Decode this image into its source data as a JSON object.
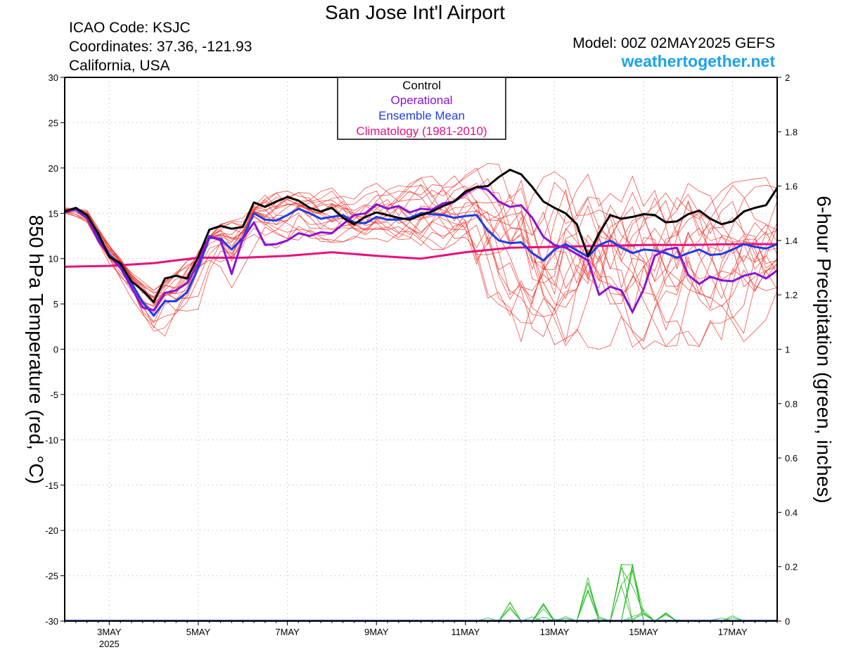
{
  "header": {
    "title": "San Jose Int'l Airport",
    "icao": "ICAO Code: KSJC",
    "coords": "Coordinates: 37.36, -121.93",
    "region": "California, USA",
    "model": "Model: 00Z 02MAY2025 GEFS",
    "site": "weathertogether.net"
  },
  "colors": {
    "control": "#000000",
    "operational": "#8a12d6",
    "mean": "#1f3bea",
    "climatology": "#e8107f",
    "members": "#f0322a",
    "precip": "#22bb22"
  },
  "chart_data": {
    "type": "line",
    "ylabel": "850 hPa Temperature (red, °C)",
    "y2label": "6-hour Precipitation (green, inches)",
    "ylim": [
      -30,
      30
    ],
    "y2lim": [
      0,
      2
    ],
    "yticks": [
      30,
      25,
      20,
      15,
      10,
      5,
      0,
      -5,
      -10,
      -15,
      -20,
      -25,
      -30
    ],
    "y2ticks": [
      "2",
      "1.8",
      "1.6",
      "1.4",
      "1.2",
      "1",
      "0.8",
      "0.6",
      "0.4",
      "0.2",
      "0"
    ],
    "xlim_days": [
      2.0,
      18.0
    ],
    "xticks": [
      {
        "day": 3,
        "label": "3MAY",
        "sub": "2025"
      },
      {
        "day": 5,
        "label": "5MAY",
        "sub": ""
      },
      {
        "day": 7,
        "label": "7MAY",
        "sub": ""
      },
      {
        "day": 9,
        "label": "9MAY",
        "sub": ""
      },
      {
        "day": 11,
        "label": "11MAY",
        "sub": ""
      },
      {
        "day": 13,
        "label": "13MAY",
        "sub": ""
      },
      {
        "day": 15,
        "label": "15MAY",
        "sub": ""
      },
      {
        "day": 17,
        "label": "17MAY",
        "sub": ""
      }
    ],
    "grid": true,
    "legend": {
      "position": "top-center",
      "entries": [
        {
          "label": "Control",
          "color": "#000000"
        },
        {
          "label": "Operational",
          "color": "#8a12d6"
        },
        {
          "label": "Ensemble Mean",
          "color": "#1f3bea"
        },
        {
          "label": "Climatology (1981-2010)",
          "color": "#e8107f"
        }
      ]
    },
    "series": [
      {
        "name": "Control",
        "color": "#000000",
        "points": [
          [
            2.0,
            15.2
          ],
          [
            2.25,
            15.6
          ],
          [
            2.5,
            14.8
          ],
          [
            2.75,
            12.8
          ],
          [
            3.0,
            10.2
          ],
          [
            3.25,
            9.5
          ],
          [
            3.5,
            7.5
          ],
          [
            3.75,
            6.5
          ],
          [
            4.0,
            5.2
          ],
          [
            4.25,
            7.8
          ],
          [
            4.5,
            8.1
          ],
          [
            4.75,
            7.8
          ],
          [
            5.0,
            10.2
          ],
          [
            5.25,
            13.2
          ],
          [
            5.5,
            13.6
          ],
          [
            5.75,
            13.3
          ],
          [
            6.0,
            13.5
          ],
          [
            6.25,
            16.2
          ],
          [
            6.5,
            15.7
          ],
          [
            6.75,
            16.3
          ],
          [
            7.0,
            16.8
          ],
          [
            7.25,
            16.4
          ],
          [
            7.5,
            15.6
          ],
          [
            7.75,
            15.2
          ],
          [
            8.0,
            15.6
          ],
          [
            8.25,
            14.5
          ],
          [
            8.5,
            13.8
          ],
          [
            8.75,
            14.6
          ],
          [
            9.0,
            15.1
          ],
          [
            9.25,
            14.8
          ],
          [
            9.5,
            14.5
          ],
          [
            9.75,
            14.3
          ],
          [
            10.0,
            14.8
          ],
          [
            10.25,
            15.2
          ],
          [
            10.5,
            15.8
          ],
          [
            10.75,
            16.3
          ],
          [
            11.0,
            17.4
          ],
          [
            11.25,
            17.9
          ],
          [
            11.5,
            18.0
          ],
          [
            11.75,
            19.0
          ],
          [
            12.0,
            19.8
          ],
          [
            12.25,
            19.3
          ],
          [
            12.5,
            17.9
          ],
          [
            12.75,
            16.3
          ],
          [
            13.0,
            15.6
          ],
          [
            13.25,
            15.0
          ],
          [
            13.5,
            13.8
          ],
          [
            13.75,
            10.3
          ],
          [
            14.0,
            12.8
          ],
          [
            14.25,
            14.8
          ],
          [
            14.5,
            14.4
          ],
          [
            14.75,
            14.6
          ],
          [
            15.0,
            14.9
          ],
          [
            15.25,
            14.8
          ],
          [
            15.5,
            14.0
          ],
          [
            15.75,
            14.1
          ],
          [
            16.0,
            14.9
          ],
          [
            16.25,
            15.3
          ],
          [
            16.5,
            14.4
          ],
          [
            16.75,
            13.8
          ],
          [
            17.0,
            14.1
          ],
          [
            17.25,
            15.2
          ],
          [
            17.5,
            15.6
          ],
          [
            17.75,
            15.9
          ],
          [
            18.0,
            17.8
          ]
        ]
      },
      {
        "name": "Operational",
        "color": "#8a12d6",
        "points": [
          [
            2.0,
            15.1
          ],
          [
            2.25,
            15.5
          ],
          [
            2.5,
            14.6
          ],
          [
            2.75,
            12.0
          ],
          [
            3.0,
            10.3
          ],
          [
            3.25,
            9.0
          ],
          [
            3.5,
            6.8
          ],
          [
            3.75,
            4.6
          ],
          [
            4.0,
            4.3
          ],
          [
            4.25,
            6.2
          ],
          [
            4.5,
            6.5
          ],
          [
            4.75,
            7.3
          ],
          [
            5.0,
            9.5
          ],
          [
            5.25,
            12.5
          ],
          [
            5.5,
            12.0
          ],
          [
            5.75,
            8.3
          ],
          [
            6.0,
            12.2
          ],
          [
            6.25,
            14.0
          ],
          [
            6.5,
            11.5
          ],
          [
            6.75,
            11.6
          ],
          [
            7.0,
            12.0
          ],
          [
            7.25,
            12.8
          ],
          [
            7.5,
            12.5
          ],
          [
            7.75,
            12.9
          ],
          [
            8.0,
            12.8
          ],
          [
            8.25,
            13.8
          ],
          [
            8.5,
            14.8
          ],
          [
            8.75,
            15.0
          ],
          [
            9.0,
            16.0
          ],
          [
            9.25,
            15.5
          ],
          [
            9.5,
            15.8
          ],
          [
            9.75,
            15.1
          ],
          [
            10.0,
            15.5
          ],
          [
            10.25,
            15.4
          ],
          [
            10.5,
            16.1
          ],
          [
            10.75,
            16.3
          ],
          [
            11.0,
            17.2
          ],
          [
            11.25,
            17.9
          ],
          [
            11.5,
            17.6
          ],
          [
            11.75,
            16.3
          ],
          [
            12.0,
            15.7
          ],
          [
            12.25,
            15.9
          ],
          [
            12.5,
            14.5
          ],
          [
            12.75,
            12.4
          ],
          [
            13.0,
            11.5
          ],
          [
            13.25,
            11.2
          ],
          [
            13.5,
            10.5
          ],
          [
            13.75,
            9.8
          ],
          [
            14.0,
            6.0
          ],
          [
            14.25,
            6.9
          ],
          [
            14.5,
            6.5
          ],
          [
            14.75,
            4.1
          ],
          [
            15.0,
            6.6
          ],
          [
            15.25,
            10.3
          ],
          [
            15.5,
            11.0
          ],
          [
            15.75,
            11.2
          ],
          [
            16.0,
            8.2
          ],
          [
            16.25,
            7.2
          ],
          [
            16.5,
            8.0
          ],
          [
            16.75,
            7.6
          ],
          [
            17.0,
            7.5
          ],
          [
            17.25,
            8.1
          ],
          [
            17.5,
            8.4
          ],
          [
            17.75,
            7.8
          ],
          [
            18.0,
            8.7
          ]
        ]
      },
      {
        "name": "Ensemble Mean",
        "color": "#1f3bea",
        "points": [
          [
            2.0,
            15.2
          ],
          [
            2.25,
            15.4
          ],
          [
            2.5,
            14.5
          ],
          [
            2.75,
            12.3
          ],
          [
            3.0,
            10.5
          ],
          [
            3.25,
            9.3
          ],
          [
            3.5,
            7.3
          ],
          [
            3.75,
            5.2
          ],
          [
            4.0,
            3.7
          ],
          [
            4.25,
            5.3
          ],
          [
            4.5,
            5.3
          ],
          [
            4.75,
            6.3
          ],
          [
            5.0,
            9.0
          ],
          [
            5.25,
            12.3
          ],
          [
            5.5,
            12.2
          ],
          [
            5.75,
            11.0
          ],
          [
            6.0,
            12.3
          ],
          [
            6.25,
            15.0
          ],
          [
            6.5,
            14.3
          ],
          [
            6.75,
            14.2
          ],
          [
            7.0,
            14.8
          ],
          [
            7.25,
            15.5
          ],
          [
            7.5,
            15.0
          ],
          [
            7.75,
            14.4
          ],
          [
            8.0,
            14.6
          ],
          [
            8.25,
            14.8
          ],
          [
            8.5,
            14.0
          ],
          [
            8.75,
            13.9
          ],
          [
            9.0,
            14.6
          ],
          [
            9.25,
            14.3
          ],
          [
            9.5,
            14.3
          ],
          [
            9.75,
            14.5
          ],
          [
            10.0,
            15.0
          ],
          [
            10.25,
            14.9
          ],
          [
            10.5,
            14.8
          ],
          [
            10.75,
            14.5
          ],
          [
            11.0,
            14.7
          ],
          [
            11.25,
            14.8
          ],
          [
            11.5,
            13.1
          ],
          [
            11.75,
            12.0
          ],
          [
            12.0,
            11.7
          ],
          [
            12.25,
            11.8
          ],
          [
            12.5,
            10.6
          ],
          [
            12.75,
            9.8
          ],
          [
            13.0,
            11.0
          ],
          [
            13.25,
            11.6
          ],
          [
            13.5,
            10.9
          ],
          [
            13.75,
            10.2
          ],
          [
            14.0,
            11.5
          ],
          [
            14.25,
            12.0
          ],
          [
            14.5,
            11.2
          ],
          [
            14.75,
            10.6
          ],
          [
            15.0,
            11.0
          ],
          [
            15.25,
            10.9
          ],
          [
            15.5,
            10.6
          ],
          [
            15.75,
            10.1
          ],
          [
            16.0,
            10.6
          ],
          [
            16.25,
            11.0
          ],
          [
            16.5,
            10.4
          ],
          [
            16.75,
            10.5
          ],
          [
            17.0,
            11.0
          ],
          [
            17.25,
            11.6
          ],
          [
            17.5,
            11.3
          ],
          [
            17.75,
            11.1
          ],
          [
            18.0,
            11.6
          ]
        ]
      },
      {
        "name": "Climatology (1981-2010)",
        "color": "#e8107f",
        "points": [
          [
            2.0,
            9.1
          ],
          [
            3.0,
            9.2
          ],
          [
            4.0,
            9.5
          ],
          [
            5.0,
            10.1
          ],
          [
            6.0,
            10.1
          ],
          [
            7.0,
            10.3
          ],
          [
            8.0,
            10.7
          ],
          [
            9.0,
            10.3
          ],
          [
            10.0,
            10.0
          ],
          [
            11.0,
            10.7
          ],
          [
            12.0,
            11.2
          ],
          [
            13.0,
            11.3
          ],
          [
            14.0,
            11.4
          ],
          [
            15.0,
            11.5
          ],
          [
            16.0,
            11.5
          ],
          [
            17.0,
            11.6
          ],
          [
            18.0,
            11.6
          ]
        ]
      }
    ],
    "members_envelope": {
      "upper": [
        [
          2.0,
          15.6
        ],
        [
          2.5,
          15.4
        ],
        [
          3.0,
          11.5
        ],
        [
          3.5,
          8.5
        ],
        [
          4.0,
          6.5
        ],
        [
          4.5,
          8.5
        ],
        [
          5.0,
          11.0
        ],
        [
          5.5,
          13.8
        ],
        [
          6.0,
          14.5
        ],
        [
          6.5,
          17.0
        ],
        [
          7.0,
          17.5
        ],
        [
          7.5,
          17.2
        ],
        [
          8.0,
          17.8
        ],
        [
          8.5,
          18.0
        ],
        [
          9.0,
          18.3
        ],
        [
          9.5,
          18.5
        ],
        [
          10.0,
          18.9
        ],
        [
          10.5,
          19.3
        ],
        [
          11.0,
          19.5
        ],
        [
          11.5,
          20.5
        ],
        [
          12.0,
          20.3
        ],
        [
          12.5,
          20.8
        ],
        [
          13.0,
          20.9
        ],
        [
          13.5,
          20.0
        ],
        [
          14.0,
          19.8
        ],
        [
          14.5,
          20.1
        ],
        [
          15.0,
          19.5
        ],
        [
          15.5,
          18.9
        ],
        [
          16.0,
          19.3
        ],
        [
          16.5,
          18.5
        ],
        [
          17.0,
          18.4
        ],
        [
          17.5,
          18.8
        ],
        [
          18.0,
          19.1
        ]
      ],
      "lower": [
        [
          2.0,
          15.0
        ],
        [
          2.5,
          14.0
        ],
        [
          3.0,
          9.5
        ],
        [
          3.5,
          5.5
        ],
        [
          4.0,
          1.0
        ],
        [
          4.25,
          0.5
        ],
        [
          4.5,
          2.0
        ],
        [
          5.0,
          3.8
        ],
        [
          5.5,
          7.5
        ],
        [
          5.75,
          6.5
        ],
        [
          6.0,
          9.0
        ],
        [
          6.5,
          11.0
        ],
        [
          7.0,
          11.3
        ],
        [
          7.5,
          12.0
        ],
        [
          8.0,
          11.8
        ],
        [
          8.5,
          11.9
        ],
        [
          9.0,
          12.2
        ],
        [
          9.5,
          11.5
        ],
        [
          10.0,
          11.0
        ],
        [
          10.5,
          11.0
        ],
        [
          11.0,
          10.8
        ],
        [
          11.25,
          5.5
        ],
        [
          11.5,
          4.5
        ],
        [
          12.0,
          1.5
        ],
        [
          12.5,
          0.0
        ],
        [
          13.0,
          0.3
        ],
        [
          13.5,
          0.5
        ],
        [
          14.0,
          0.0
        ],
        [
          14.5,
          0.2
        ],
        [
          15.0,
          0.0
        ],
        [
          15.5,
          0.3
        ],
        [
          16.0,
          0.5
        ],
        [
          16.5,
          0.1
        ],
        [
          17.0,
          -0.6
        ],
        [
          17.5,
          2.0
        ],
        [
          18.0,
          4.6
        ]
      ]
    },
    "precip_peaks": [
      [
        12.0,
        0.07
      ],
      [
        12.75,
        0.065
      ],
      [
        13.75,
        0.16
      ],
      [
        14.5,
        0.21
      ],
      [
        14.75,
        0.21
      ],
      [
        15.0,
        0.04
      ],
      [
        15.5,
        0.03
      ]
    ]
  }
}
